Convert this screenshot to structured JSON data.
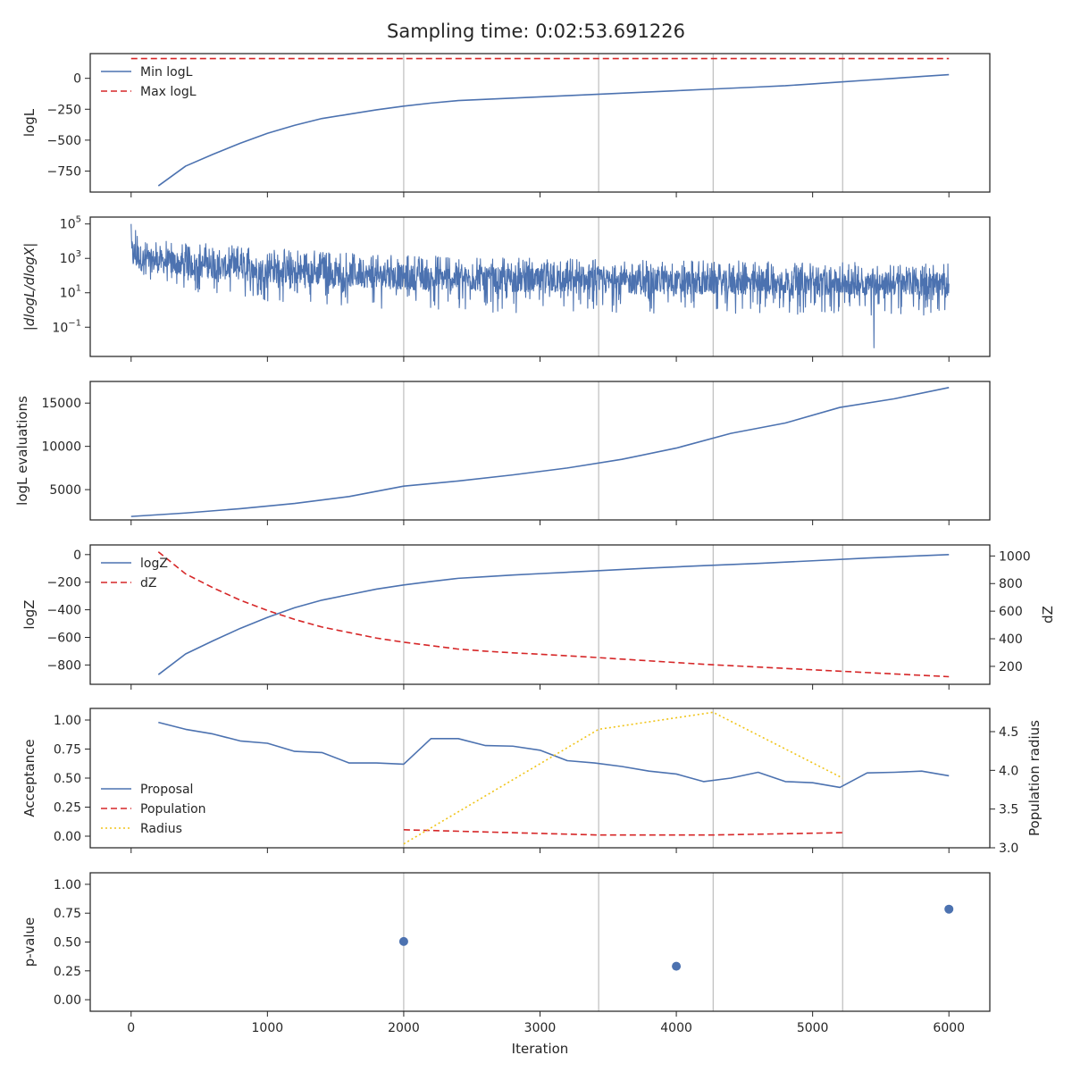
{
  "title": "Sampling time: 0:02:53.691226",
  "colors": {
    "blue": "#4c72b0",
    "red": "#d62728",
    "yellow": "#f0c419",
    "vline": "#b0b0b0"
  },
  "shared_x": {
    "label": "Iteration",
    "lim": [
      -300,
      6300
    ],
    "ticks": [
      0,
      1000,
      2000,
      3000,
      4000,
      5000,
      6000
    ],
    "tick_labels": [
      "0",
      "1000",
      "2000",
      "3000",
      "4000",
      "5000",
      "6000"
    ]
  },
  "vlines": [
    2000,
    3430,
    4270,
    5220
  ],
  "chart_data": [
    {
      "type": "line",
      "ylabel": "logL",
      "ylim": [
        -920,
        200
      ],
      "yticks": [
        0,
        -250,
        -500,
        -750
      ],
      "ytick_labels": [
        "0",
        "−250",
        "−500",
        "−750"
      ],
      "legend": "top-left",
      "series": [
        {
          "name": "Min logL",
          "style": "solid",
          "color": "#4c72b0",
          "x": [
            200,
            400,
            600,
            800,
            1000,
            1200,
            1400,
            1600,
            1800,
            2000,
            2200,
            2400,
            2600,
            2800,
            3000,
            3200,
            3400,
            3600,
            3800,
            4000,
            4200,
            4400,
            4600,
            4800,
            5000,
            5200,
            5400,
            5600,
            5800,
            6000
          ],
          "y": [
            -870,
            -710,
            -615,
            -525,
            -445,
            -380,
            -325,
            -290,
            -255,
            -225,
            -200,
            -180,
            -170,
            -160,
            -150,
            -140,
            -130,
            -120,
            -110,
            -100,
            -90,
            -80,
            -70,
            -60,
            -45,
            -30,
            -15,
            0,
            15,
            30
          ]
        },
        {
          "name": "Max logL",
          "style": "dashed",
          "color": "#d62728",
          "x": [
            0,
            6000
          ],
          "y": [
            160,
            160
          ]
        }
      ]
    },
    {
      "type": "line",
      "ylabel": "|dlogL/dlogX|",
      "yscale": "log",
      "ylim_exp": [
        -2.7,
        5.4
      ],
      "yticks_exp": [
        5,
        3,
        1,
        -1
      ],
      "ytick_labels": [
        "10^5",
        "10^3",
        "10^1",
        "10^-1"
      ],
      "series": [
        {
          "name": "",
          "style": "solid",
          "color": "#4c72b0",
          "x_range": [
            0,
            6000
          ],
          "envelope": {
            "x": [
              0,
              100,
              500,
              1000,
              2000,
              3000,
              4000,
              5000,
              6000
            ],
            "upper_exp": [
              5.0,
              4.1,
              3.9,
              3.6,
              3.2,
              3.0,
              2.9,
              2.8,
              2.7
            ],
            "center_exp": [
              3.3,
              2.9,
              2.6,
              2.3,
              1.9,
              1.7,
              1.6,
              1.55,
              1.5
            ],
            "lower_exp": [
              2.0,
              1.6,
              1.0,
              0.5,
              0.0,
              -0.2,
              -0.2,
              -0.3,
              -0.3
            ]
          },
          "min_value_exp": -2.2,
          "min_at_x": 5450
        }
      ]
    },
    {
      "type": "line",
      "ylabel": "logL evaluations",
      "ylim": [
        1500,
        17500
      ],
      "yticks": [
        5000,
        10000,
        15000
      ],
      "ytick_labels": [
        "5000",
        "10000",
        "15000"
      ],
      "series": [
        {
          "name": "",
          "style": "solid",
          "color": "#4c72b0",
          "x": [
            0,
            400,
            800,
            1200,
            1600,
            2000,
            2400,
            2800,
            3200,
            3600,
            4000,
            4400,
            4800,
            5200,
            5600,
            6000
          ],
          "y": [
            1900,
            2300,
            2800,
            3400,
            4200,
            5400,
            6000,
            6700,
            7500,
            8500,
            9800,
            11500,
            12700,
            14500,
            15500,
            16800
          ]
        }
      ]
    },
    {
      "type": "line",
      "ylabel": "logZ",
      "ylabel_right": "dZ",
      "ylim": [
        -940,
        70
      ],
      "yticks": [
        0,
        -200,
        -400,
        -600,
        -800
      ],
      "ytick_labels": [
        "0",
        "−200",
        "−400",
        "−600",
        "−800"
      ],
      "ylim_right": [
        70,
        1080
      ],
      "yticks_right": [
        1000,
        800,
        600,
        400,
        200
      ],
      "ytick_labels_right": [
        "1000",
        "800",
        "600",
        "400",
        "200"
      ],
      "legend": "top-left",
      "series": [
        {
          "name": "logZ",
          "style": "solid",
          "color": "#4c72b0",
          "axis": "left",
          "x": [
            200,
            400,
            600,
            800,
            1000,
            1200,
            1400,
            1600,
            1800,
            2000,
            2200,
            2400,
            2600,
            2800,
            3000,
            3400,
            3800,
            4200,
            4600,
            5000,
            5400,
            5800,
            6000
          ],
          "y": [
            -870,
            -720,
            -625,
            -535,
            -455,
            -385,
            -330,
            -290,
            -250,
            -220,
            -195,
            -172,
            -160,
            -148,
            -138,
            -118,
            -98,
            -80,
            -64,
            -45,
            -25,
            -8,
            0
          ]
        },
        {
          "name": "dZ",
          "style": "dashed",
          "color": "#d62728",
          "axis": "right",
          "x": [
            200,
            400,
            600,
            800,
            1000,
            1200,
            1400,
            1600,
            1800,
            2000,
            2200,
            2400,
            2600,
            2800,
            3000,
            3400,
            3800,
            4200,
            4600,
            5000,
            5400,
            5800,
            6000
          ],
          "y": [
            1030,
            870,
            770,
            680,
            605,
            540,
            485,
            445,
            405,
            375,
            350,
            325,
            310,
            298,
            288,
            265,
            240,
            215,
            195,
            175,
            155,
            135,
            125
          ]
        }
      ]
    },
    {
      "type": "line",
      "ylabel": "Acceptance",
      "ylabel_right": "Population radius",
      "ylim": [
        -0.1,
        1.1
      ],
      "yticks": [
        1.0,
        0.75,
        0.5,
        0.25,
        0.0
      ],
      "ytick_labels": [
        "1.00",
        "0.75",
        "0.50",
        "0.25",
        "0.00"
      ],
      "ylim_right": [
        3.0,
        4.8
      ],
      "yticks_right": [
        4.5,
        4.0,
        3.5,
        3.0
      ],
      "ytick_labels_right": [
        "4.5",
        "4.0",
        "3.5",
        "3.0"
      ],
      "legend": "lower-left",
      "series": [
        {
          "name": "Proposal",
          "style": "solid",
          "color": "#4c72b0",
          "axis": "left",
          "x": [
            200,
            400,
            600,
            800,
            1000,
            1200,
            1400,
            1600,
            1800,
            2000,
            2200,
            2400,
            2600,
            2800,
            3000,
            3200,
            3400,
            3600,
            3800,
            4000,
            4200,
            4400,
            4600,
            4800,
            5000,
            5200,
            5400,
            5600,
            5800,
            6000
          ],
          "y": [
            0.98,
            0.92,
            0.88,
            0.82,
            0.8,
            0.73,
            0.72,
            0.63,
            0.63,
            0.62,
            0.84,
            0.84,
            0.78,
            0.775,
            0.74,
            0.65,
            0.63,
            0.6,
            0.56,
            0.535,
            0.47,
            0.5,
            0.55,
            0.47,
            0.46,
            0.42,
            0.545,
            0.55,
            0.56,
            0.52
          ]
        },
        {
          "name": "Population",
          "style": "dashed",
          "color": "#d62728",
          "axis": "left",
          "x": [
            2000,
            3430,
            4270,
            5220
          ],
          "y": [
            0.055,
            0.01,
            0.01,
            0.03
          ]
        },
        {
          "name": "Radius",
          "style": "dotted",
          "color": "#f0c419",
          "axis": "right",
          "x": [
            2000,
            3430,
            4270,
            5220
          ],
          "y": [
            3.05,
            4.53,
            4.75,
            3.9
          ]
        }
      ]
    },
    {
      "type": "scatter",
      "ylabel": "p-value",
      "xlabel": "Iteration",
      "ylim": [
        -0.1,
        1.1
      ],
      "yticks": [
        1.0,
        0.75,
        0.5,
        0.25,
        0.0
      ],
      "ytick_labels": [
        "1.00",
        "0.75",
        "0.50",
        "0.25",
        "0.00"
      ],
      "series": [
        {
          "name": "",
          "color": "#4c72b0",
          "x": [
            2000,
            4000,
            6000
          ],
          "y": [
            0.505,
            0.29,
            0.785
          ]
        }
      ]
    }
  ]
}
